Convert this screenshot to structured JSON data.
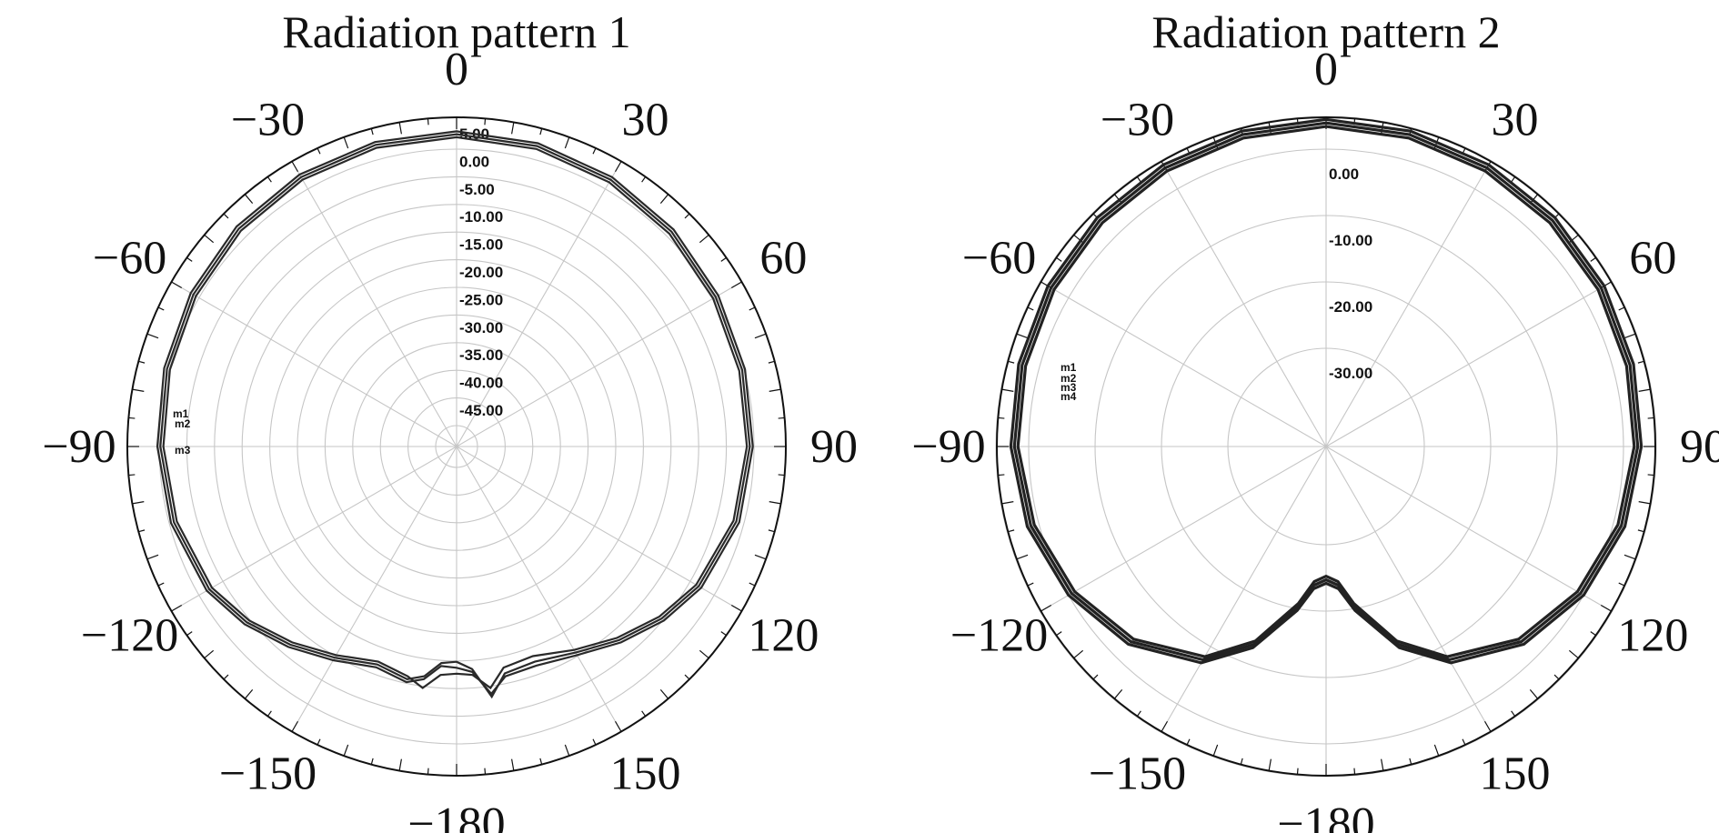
{
  "chart_data": [
    {
      "type": "polar-line",
      "title": "Radiation pattern 1",
      "angle_labels": [
        "0",
        "30",
        "60",
        "90",
        "120",
        "150",
        "−180",
        "−150",
        "−120",
        "−90",
        "−60",
        "−30"
      ],
      "radial_tick_labels": [
        "5.00",
        "0.00",
        "-5.00",
        "-10.00",
        "-15.00",
        "-20.00",
        "-25.00",
        "-30.00",
        "-35.00",
        "-40.00",
        "-45.00"
      ],
      "rlim": [
        -50,
        10
      ],
      "grid": true,
      "markers": [
        "m1",
        "m2",
        "m3"
      ],
      "series": [
        {
          "theta": [
            0,
            15,
            30,
            45,
            60,
            75,
            90,
            105,
            120,
            130,
            140,
            150,
            160,
            168,
            172,
            176,
            180,
            184,
            188,
            192,
            200,
            210,
            220,
            230,
            240,
            255,
            270,
            285,
            300,
            315,
            330,
            345,
            360
          ],
          "r": [
            3.0,
            2.8,
            2.3,
            1.6,
            0.8,
            0.2,
            -0.2,
            -0.8,
            -2.5,
            -4.5,
            -7.0,
            -9.5,
            -10.8,
            -10.5,
            -8.0,
            -12.0,
            -12.8,
            -13.0,
            -10.5,
            -9.5,
            -10.5,
            -8.5,
            -6.0,
            -3.5,
            -1.5,
            -0.3,
            0.3,
            0.9,
            1.6,
            2.3,
            2.8,
            3.0,
            3.0
          ]
        },
        {
          "theta": [
            0,
            15,
            30,
            45,
            60,
            75,
            90,
            105,
            120,
            130,
            140,
            150,
            160,
            168,
            172,
            176,
            180,
            184,
            188,
            192,
            200,
            210,
            220,
            230,
            240,
            255,
            270,
            285,
            300,
            315,
            330,
            345,
            360
          ],
          "r": [
            2.5,
            2.3,
            1.8,
            1.1,
            0.3,
            -0.3,
            -0.7,
            -1.3,
            -3.0,
            -5.0,
            -7.5,
            -10.0,
            -11.5,
            -11.0,
            -7.5,
            -12.5,
            -13.8,
            -13.5,
            -11.0,
            -10.0,
            -11.0,
            -9.0,
            -6.5,
            -4.0,
            -2.0,
            -0.8,
            -0.2,
            0.4,
            1.1,
            1.8,
            2.3,
            2.5,
            2.5
          ]
        },
        {
          "theta": [
            0,
            15,
            30,
            45,
            60,
            75,
            90,
            105,
            120,
            130,
            140,
            150,
            160,
            168,
            172,
            176,
            180,
            184,
            188,
            192,
            200,
            210,
            220,
            230,
            240,
            255,
            270,
            285,
            300,
            315,
            330,
            345,
            360
          ],
          "r": [
            2.0,
            1.8,
            1.3,
            0.6,
            -0.2,
            -0.8,
            -1.2,
            -1.8,
            -3.5,
            -5.5,
            -8.0,
            -10.5,
            -12.5,
            -12.0,
            -9.0,
            -11.5,
            -11.8,
            -11.5,
            -9.0,
            -10.5,
            -11.5,
            -9.5,
            -7.0,
            -4.5,
            -2.5,
            -1.3,
            -0.7,
            -0.1,
            0.6,
            1.3,
            1.8,
            2.0,
            2.0
          ]
        }
      ]
    },
    {
      "type": "polar-line",
      "title": "Radiation pattern 2",
      "angle_labels": [
        "0",
        "30",
        "60",
        "90",
        "120",
        "150",
        "−180",
        "−150",
        "−120",
        "−90",
        "−60",
        "−30"
      ],
      "radial_tick_labels": [
        "0.00",
        "-10.00",
        "-20.00",
        "-30.00"
      ],
      "rlim": [
        -50,
        10
      ],
      "grid": true,
      "markers": [
        "m1",
        "m2",
        "m3",
        "m4"
      ],
      "series": [
        {
          "theta": [
            0,
            15,
            30,
            45,
            60,
            75,
            90,
            105,
            120,
            135,
            150,
            160,
            170,
            175,
            180,
            185,
            190,
            200,
            210,
            225,
            240,
            255,
            270,
            285,
            300,
            315,
            330,
            345,
            360
          ],
          "r": [
            5.0,
            4.9,
            4.7,
            4.4,
            4.0,
            3.5,
            3.0,
            2.0,
            0.0,
            -3.0,
            -8.0,
            -14.0,
            -22.0,
            -26.0,
            -27.0,
            -26.0,
            -22.0,
            -14.0,
            -8.0,
            -3.0,
            0.0,
            2.0,
            3.0,
            3.5,
            4.0,
            4.4,
            4.7,
            4.9,
            5.0
          ]
        },
        {
          "theta": [
            0,
            15,
            30,
            45,
            60,
            75,
            90,
            105,
            120,
            135,
            150,
            160,
            170,
            175,
            180,
            185,
            190,
            200,
            210,
            225,
            240,
            255,
            270,
            285,
            300,
            315,
            330,
            345,
            360
          ],
          "r": [
            4.4,
            4.3,
            4.1,
            3.8,
            3.4,
            2.9,
            2.4,
            1.4,
            -0.6,
            -3.6,
            -8.6,
            -14.6,
            -22.6,
            -26.6,
            -27.6,
            -26.6,
            -22.6,
            -14.6,
            -8.6,
            -3.6,
            -0.6,
            1.4,
            2.4,
            2.9,
            3.4,
            3.8,
            4.1,
            4.3,
            4.4
          ]
        },
        {
          "theta": [
            0,
            15,
            30,
            45,
            60,
            75,
            90,
            105,
            120,
            135,
            150,
            160,
            170,
            175,
            180,
            185,
            190,
            200,
            210,
            225,
            240,
            255,
            270,
            285,
            300,
            315,
            330,
            345,
            360
          ],
          "r": [
            3.8,
            3.7,
            3.5,
            3.2,
            2.8,
            2.3,
            1.8,
            0.8,
            -1.2,
            -4.2,
            -9.2,
            -15.2,
            -23.2,
            -27.2,
            -28.2,
            -27.2,
            -23.2,
            -15.2,
            -9.2,
            -4.2,
            -1.2,
            0.8,
            1.8,
            2.3,
            2.8,
            3.2,
            3.5,
            3.7,
            3.8
          ]
        }
      ]
    }
  ]
}
